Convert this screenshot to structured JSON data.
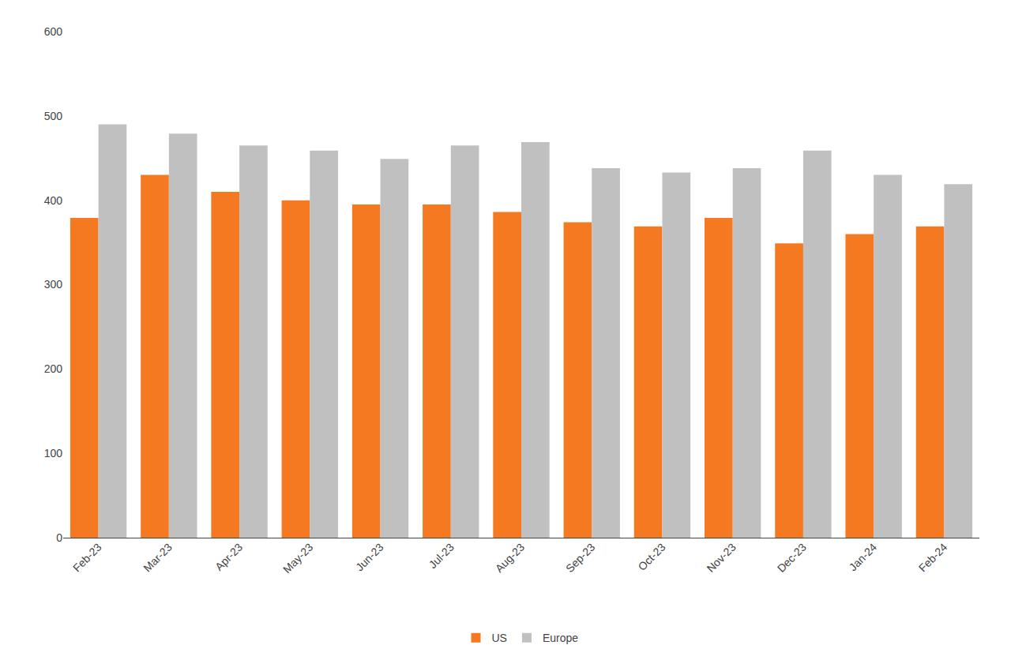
{
  "chart_data": {
    "type": "bar",
    "categories": [
      "Feb-23",
      "Mar-23",
      "Apr-23",
      "May-23",
      "Jun-23",
      "Jul-23",
      "Aug-23",
      "Sep-23",
      "Oct-23",
      "Nov-23",
      "Dec-23",
      "Jan-24",
      "Feb-24"
    ],
    "series": [
      {
        "name": "US",
        "color": "#F47920",
        "values": [
          379,
          430,
          410,
          400,
          395,
          395,
          386,
          374,
          369,
          379,
          349,
          360,
          369
        ]
      },
      {
        "name": "Europe",
        "color": "#C0C0C0",
        "values": [
          490,
          479,
          465,
          459,
          449,
          465,
          469,
          438,
          433,
          438,
          459,
          430,
          419
        ]
      }
    ],
    "ylim": [
      0,
      600
    ],
    "yticks": [
      0,
      100,
      200,
      300,
      400,
      500,
      600
    ],
    "grid": false,
    "legend": "bottom"
  }
}
